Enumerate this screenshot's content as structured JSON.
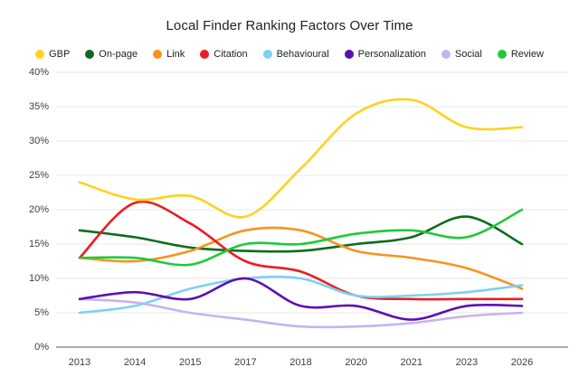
{
  "title": "Local Finder Ranking Factors Over Time",
  "chart_data": {
    "type": "line",
    "title": "Local Finder Ranking Factors Over Time",
    "x_categories": [
      "2013",
      "2014",
      "2015",
      "2017",
      "2018",
      "2020",
      "2021",
      "2023",
      "2026"
    ],
    "series": [
      {
        "name": "GBP",
        "color": "#FFD21E",
        "values": [
          24,
          21.5,
          22,
          19,
          26,
          34,
          36,
          32,
          32
        ]
      },
      {
        "name": "On-page",
        "color": "#0F6B1F",
        "values": [
          17,
          16,
          14.5,
          14,
          14,
          15,
          16,
          19,
          15
        ]
      },
      {
        "name": "Link",
        "color": "#F7941E",
        "values": [
          13,
          12.5,
          14,
          17,
          17,
          14,
          13,
          11.5,
          8.5
        ]
      },
      {
        "name": "Citation",
        "color": "#EC1C24",
        "values": [
          13,
          21,
          18,
          12.5,
          11,
          7.5,
          7,
          7,
          7
        ]
      },
      {
        "name": "Behavioural",
        "color": "#7DD1F2",
        "values": [
          5,
          6,
          8.5,
          10,
          10,
          7.5,
          7.5,
          8,
          9
        ]
      },
      {
        "name": "Personalization",
        "color": "#5B10B4",
        "values": [
          7,
          8,
          7,
          10,
          6,
          6,
          4,
          6,
          6
        ]
      },
      {
        "name": "Social",
        "color": "#C7B3F0",
        "values": [
          7,
          6.5,
          5,
          4,
          3,
          3,
          3.5,
          4.5,
          5
        ]
      },
      {
        "name": "Review",
        "color": "#1FC93C",
        "values": [
          13,
          13,
          12,
          15,
          15,
          16.5,
          17,
          16,
          20
        ]
      }
    ],
    "ylim": [
      0,
      40
    ],
    "yticks": [
      {
        "value": 0,
        "label": "0%"
      },
      {
        "value": 5,
        "label": "5%"
      },
      {
        "value": 10,
        "label": "10%"
      },
      {
        "value": 15,
        "label": "15%"
      },
      {
        "value": 20,
        "label": "20%"
      },
      {
        "value": 25,
        "label": "25%"
      },
      {
        "value": 30,
        "label": "30%"
      },
      {
        "value": 35,
        "label": "35%"
      },
      {
        "value": 40,
        "label": "40%"
      }
    ],
    "grid": "horizontal",
    "legend_position": "top",
    "draw_order": [
      "On-page",
      "Link",
      "Citation",
      "GBP",
      "Social",
      "Behavioural",
      "Personalization",
      "Review"
    ]
  }
}
